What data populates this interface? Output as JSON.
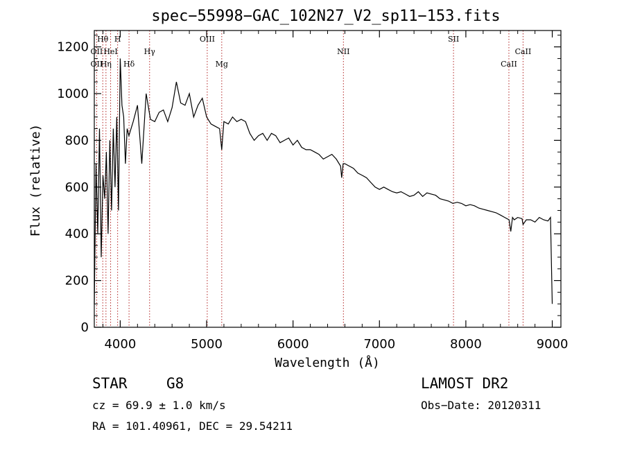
{
  "chart_data": {
    "type": "line",
    "title": "spec−55998−GAC_102N27_V2_sp11−153.fits",
    "xlabel": "Wavelength (Å)",
    "ylabel": "Flux (relative)",
    "xlim": [
      3700,
      9100
    ],
    "ylim": [
      0,
      1270
    ],
    "x_ticks": [
      4000,
      5000,
      6000,
      7000,
      8000,
      9000
    ],
    "y_ticks": [
      0,
      200,
      400,
      600,
      800,
      1000,
      1200
    ],
    "grid": false,
    "series": [
      {
        "x": [
          3700,
          3720,
          3740,
          3760,
          3780,
          3800,
          3820,
          3840,
          3860,
          3880,
          3900,
          3920,
          3940,
          3960,
          3980,
          4000,
          4020,
          4040,
          4060,
          4080,
          4100,
          4150,
          4200,
          4250,
          4300,
          4350,
          4400,
          4450,
          4500,
          4550,
          4600,
          4650,
          4700,
          4750,
          4800,
          4850,
          4900,
          4950,
          5000,
          5050,
          5100,
          5150,
          5175,
          5200,
          5250,
          5300,
          5350,
          5400,
          5450,
          5500,
          5550,
          5600,
          5650,
          5700,
          5750,
          5800,
          5850,
          5900,
          5950,
          6000,
          6050,
          6100,
          6150,
          6200,
          6250,
          6300,
          6350,
          6400,
          6450,
          6500,
          6550,
          6563,
          6580,
          6600,
          6650,
          6700,
          6750,
          6800,
          6850,
          6900,
          6950,
          7000,
          7050,
          7100,
          7150,
          7200,
          7250,
          7300,
          7350,
          7400,
          7450,
          7500,
          7550,
          7600,
          7650,
          7700,
          7750,
          7800,
          7850,
          7900,
          7950,
          8000,
          8050,
          8100,
          8150,
          8200,
          8250,
          8300,
          8350,
          8400,
          8450,
          8500,
          8520,
          8540,
          8560,
          8600,
          8650,
          8662,
          8700,
          8750,
          8800,
          8850,
          8900,
          8950,
          8980,
          9000
        ],
        "y": [
          100,
          700,
          400,
          850,
          300,
          650,
          550,
          750,
          400,
          800,
          500,
          850,
          600,
          900,
          500,
          1150,
          950,
          900,
          700,
          850,
          820,
          880,
          950,
          700,
          1000,
          890,
          880,
          920,
          930,
          880,
          940,
          1050,
          960,
          950,
          1000,
          900,
          950,
          980,
          900,
          870,
          860,
          850,
          760,
          880,
          870,
          900,
          880,
          890,
          880,
          830,
          800,
          820,
          830,
          800,
          830,
          820,
          790,
          800,
          810,
          780,
          800,
          770,
          760,
          760,
          750,
          740,
          720,
          730,
          740,
          720,
          690,
          640,
          700,
          700,
          690,
          680,
          660,
          650,
          640,
          620,
          600,
          590,
          600,
          590,
          580,
          575,
          580,
          570,
          560,
          565,
          580,
          560,
          575,
          570,
          565,
          550,
          545,
          540,
          530,
          535,
          530,
          520,
          525,
          520,
          510,
          505,
          500,
          495,
          490,
          480,
          470,
          460,
          410,
          470,
          460,
          470,
          465,
          440,
          460,
          460,
          450,
          470,
          460,
          455,
          470,
          100
        ]
      }
    ],
    "annotations": [
      {
        "label": "Hθ",
        "x": 3798,
        "row": 1
      },
      {
        "label": "H",
        "x": 3970,
        "row": 1
      },
      {
        "label": "OIII",
        "x": 5007,
        "row": 1
      },
      {
        "label": "SII",
        "x": 7857,
        "row": 1
      },
      {
        "label": "OII",
        "x": 3727,
        "row": 2
      },
      {
        "label": "HeI",
        "x": 3889,
        "row": 2
      },
      {
        "label": "Hγ",
        "x": 4340,
        "row": 2
      },
      {
        "label": "NII",
        "x": 6583,
        "row": 2
      },
      {
        "label": "CaII",
        "x": 8662,
        "row": 2
      },
      {
        "label": "OII",
        "x": 3727,
        "row": 3
      },
      {
        "label": "Hη",
        "x": 3835,
        "row": 3
      },
      {
        "label": "Hδ",
        "x": 4102,
        "row": 3
      },
      {
        "label": "Mg",
        "x": 5175,
        "row": 3
      },
      {
        "label": "CaII",
        "x": 8498,
        "row": 3
      }
    ],
    "line_markers": [
      3727,
      3798,
      3835,
      3889,
      3970,
      4102,
      4340,
      5007,
      5175,
      6583,
      7857,
      8498,
      8662
    ]
  },
  "footer": {
    "class": "STAR",
    "subclass": "G8",
    "survey": "LAMOST DR2",
    "cz": "cz = 69.9 ± 1.0 km/s",
    "obs_date": "Obs−Date: 20120311",
    "coords": "RA = 101.40961, DEC =  29.54211"
  },
  "colors": {
    "axes": "#000000",
    "spectrum": "#000000",
    "line_marker": "#b22222"
  }
}
